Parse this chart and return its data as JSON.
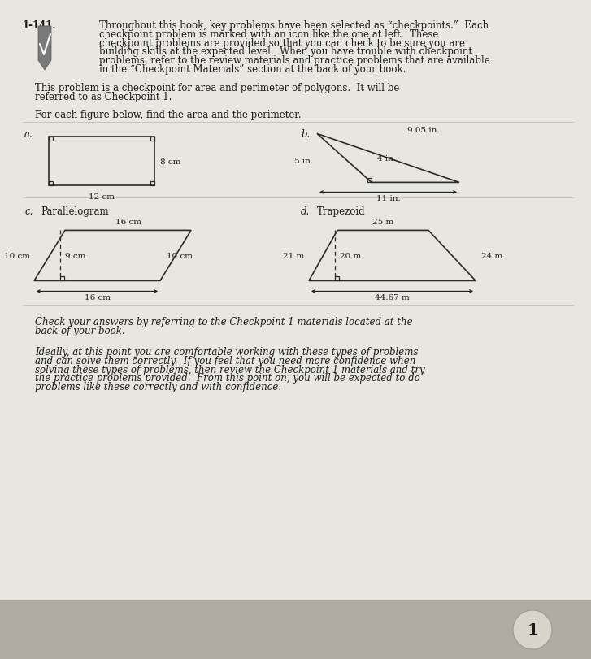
{
  "page_color": "#e8e6e0",
  "page_color2": "#dbd8d0",
  "bottom_bar_color": "#b8b4ac",
  "text_color": "#1a1a1a",
  "shape_color": "#2a2a2a",
  "title_num": "1-141.",
  "para1_lines": [
    "Throughout this book, key problems have been selected as “checkpoints.”  Each",
    "checkpoint problem is marked with an icon like the one at left.  These",
    "checkpoint problems are provided so that you can check to be sure you are",
    "building skills at the expected level.  When you have trouble with checkpoint",
    "problems, refer to the review materials and practice problems that are available",
    "in the “Checkpoint Materials” section at the back of your book."
  ],
  "para2_lines": [
    "This problem is a checkpoint for area and perimeter of polygons.  It will be",
    "referred to as Checkpoint 1."
  ],
  "para3": "For each figure below, find the area and the perimeter.",
  "check_lines": [
    "Check your answers by referring to the Checkpoint 1 materials located at the",
    "back of your book."
  ],
  "ideal_lines": [
    "Ideally, at this point you are comfortable working with these types of problems",
    "and can solve them correctly.  If you feel that you need more confidence when",
    "solving these types of problems, then review the Checkpoint 1 materials and try",
    "the practice problems provided.  From this point on, you will be expected to do",
    "problems like these correctly and with confidence."
  ],
  "fs_main": 8.5,
  "fs_shape": 7.5
}
